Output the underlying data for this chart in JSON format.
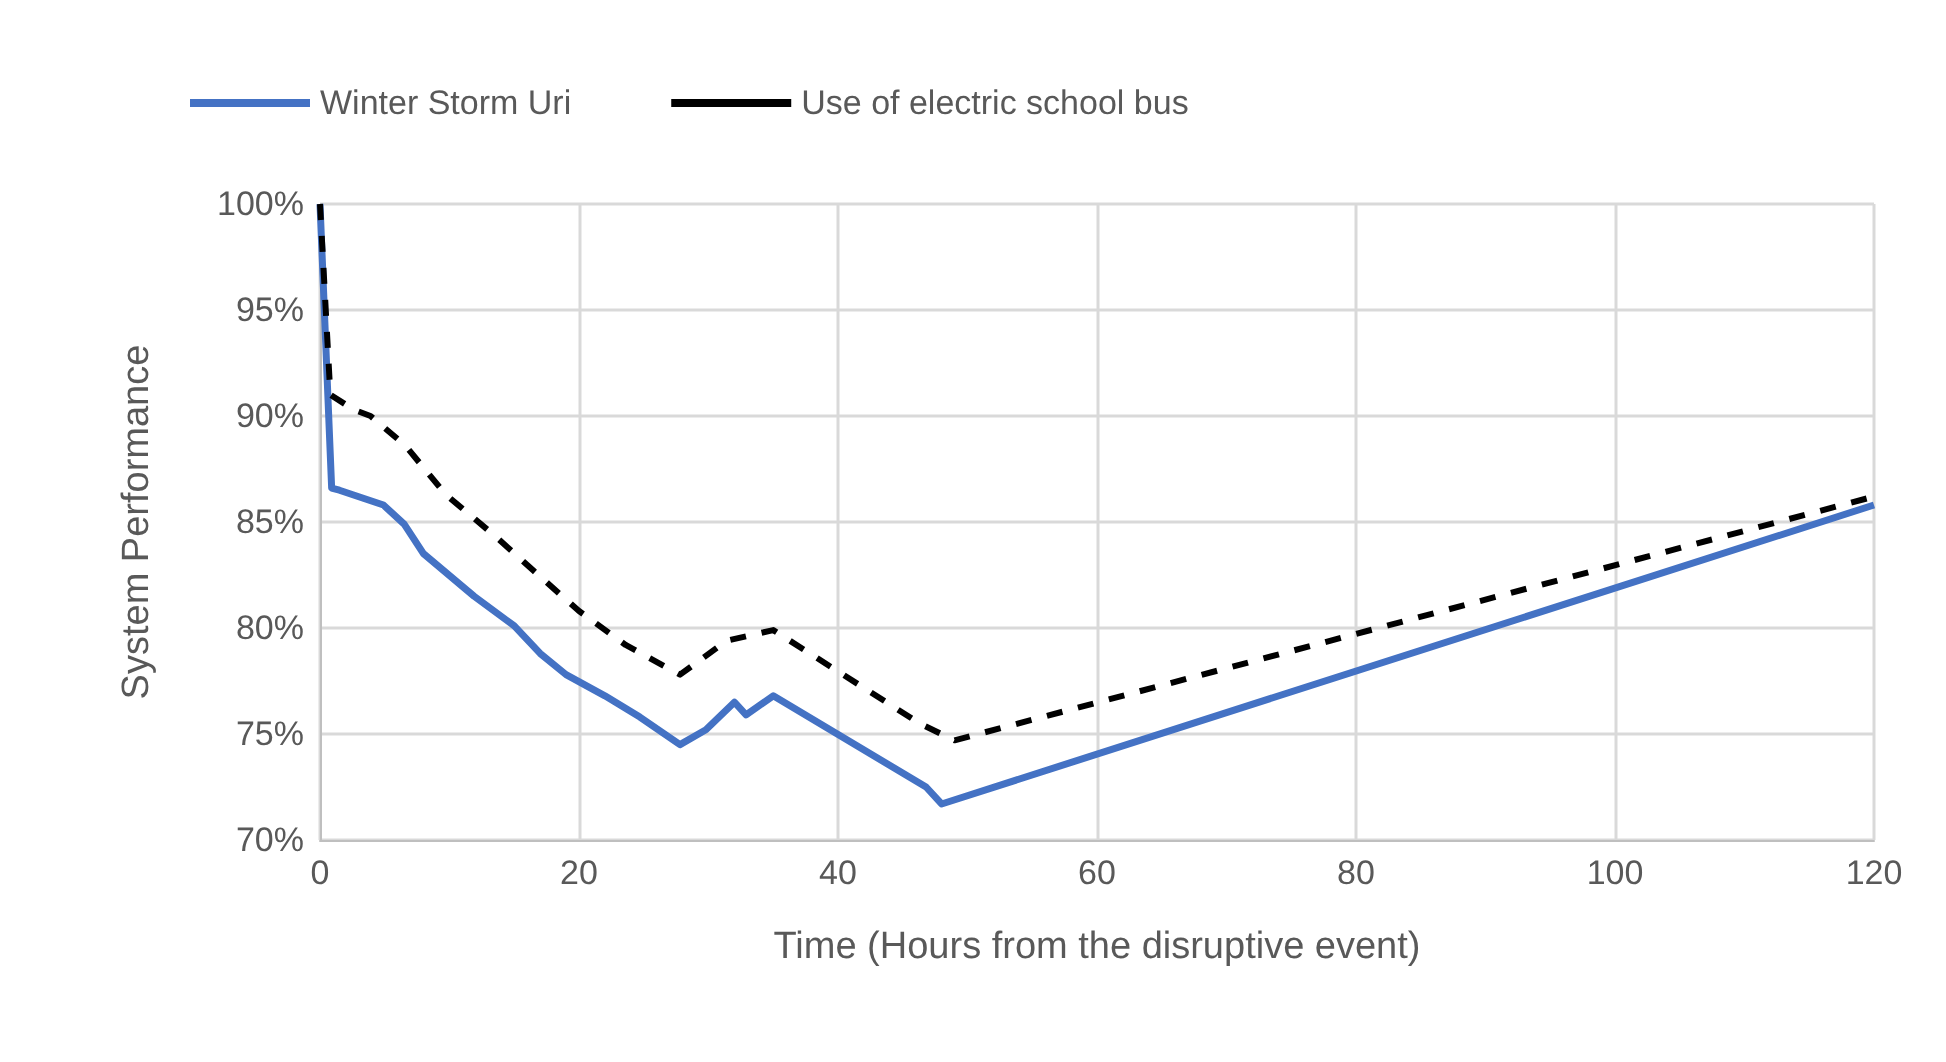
{
  "chart_data": {
    "type": "line",
    "xlabel": "Time (Hours from the disruptive event)",
    "ylabel": "System Performance",
    "series": [
      {
        "name": "Winter Storm Uri",
        "color": "#4472c4",
        "line_style": "solid",
        "x": [
          0,
          0.9,
          1.5,
          4.9,
          6.5,
          8,
          11.9,
          15,
          17,
          19,
          22,
          24.7,
          27.8,
          29.8,
          32,
          32.9,
          35,
          46.8,
          48,
          120
        ],
        "values": [
          100,
          86.6,
          86.5,
          85.8,
          84.9,
          83.5,
          81.5,
          80.1,
          78.8,
          77.8,
          76.8,
          75.8,
          74.5,
          75.2,
          76.5,
          75.9,
          76.8,
          72.5,
          71.7,
          85.8
        ]
      },
      {
        "name": "Use of electric school bus",
        "color": "#000000",
        "line_style": "dashed",
        "x": [
          0,
          0.8,
          2.6,
          3.9,
          6.6,
          9.7,
          13.4,
          16.5,
          20,
          23.6,
          27.8,
          31.4,
          35,
          46.3,
          49,
          120
        ],
        "values": [
          100,
          91,
          90.3,
          90,
          88.6,
          86.3,
          84.4,
          82.7,
          80.8,
          79.2,
          77.8,
          79.4,
          79.9,
          75.5,
          74.7,
          86.2
        ]
      }
    ],
    "xlim": [
      0,
      120
    ],
    "xticks": [
      0,
      20,
      40,
      60,
      80,
      100,
      120
    ],
    "ylim": [
      70,
      100
    ],
    "yticks": [
      {
        "value": 70,
        "label": "70%"
      },
      {
        "value": 75,
        "label": "75%"
      },
      {
        "value": 80,
        "label": "80%"
      },
      {
        "value": 85,
        "label": "85%"
      },
      {
        "value": 90,
        "label": "90%"
      },
      {
        "value": 95,
        "label": "95%"
      },
      {
        "value": 100,
        "label": "100%"
      }
    ],
    "grid": true,
    "legend": "top left",
    "marker": "none"
  }
}
